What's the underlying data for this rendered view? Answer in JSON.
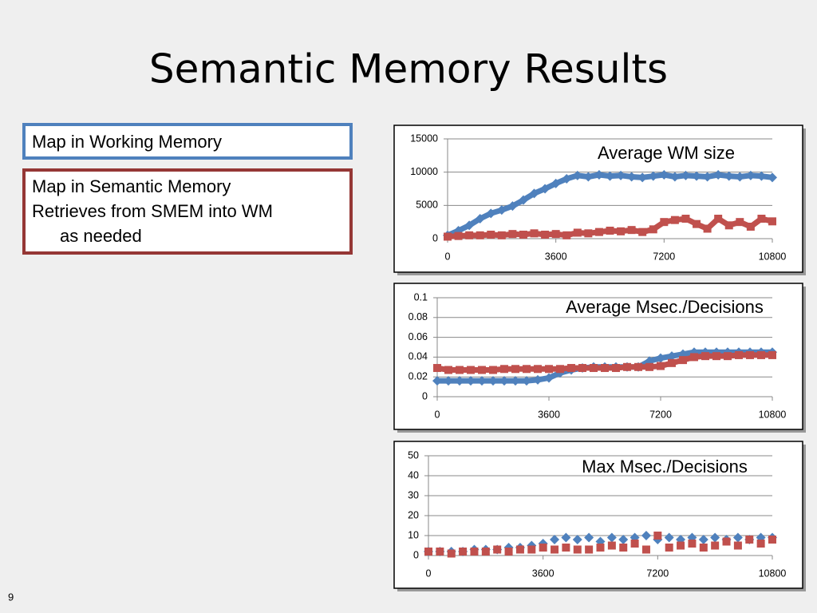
{
  "slide": {
    "title": "Semantic Memory Results",
    "boxes": [
      {
        "lines": [
          "Map in Working Memory"
        ]
      },
      {
        "lines": [
          "Map in Semantic Memory",
          "Retrieves from SMEM into WM",
          "as needed"
        ]
      }
    ],
    "page_number": "9"
  },
  "chart_data": [
    {
      "type": "line",
      "title": "Average WM size",
      "x": [
        0,
        360,
        720,
        1080,
        1440,
        1800,
        2160,
        2520,
        2880,
        3240,
        3600,
        3960,
        4320,
        4680,
        5040,
        5400,
        5760,
        6120,
        6480,
        6840,
        7200,
        7560,
        7920,
        8280,
        8640,
        9000,
        9360,
        9720,
        10080,
        10440,
        10800
      ],
      "series": [
        {
          "color": "#4f81bd",
          "marker": "diamond",
          "values": [
            500,
            1200,
            2000,
            3000,
            3800,
            4300,
            4900,
            5800,
            6800,
            7500,
            8300,
            9000,
            9500,
            9300,
            9600,
            9400,
            9500,
            9300,
            9200,
            9400,
            9600,
            9300,
            9500,
            9400,
            9300,
            9600,
            9400,
            9300,
            9500,
            9400,
            9200
          ]
        },
        {
          "color": "#c0504d",
          "marker": "square",
          "values": [
            300,
            400,
            500,
            500,
            600,
            500,
            700,
            600,
            800,
            600,
            700,
            500,
            900,
            800,
            1000,
            1200,
            1100,
            1300,
            1000,
            1400,
            2500,
            2800,
            3000,
            2200,
            1500,
            3000,
            2000,
            2500,
            1800,
            3000,
            2600
          ]
        }
      ],
      "xlim": [
        0,
        10800
      ],
      "xticks": [
        0,
        3600,
        7200,
        10800
      ],
      "ylim": [
        0,
        15000
      ],
      "yticks": [
        0,
        5000,
        10000,
        15000
      ],
      "grid": true
    },
    {
      "type": "line",
      "title": "Average Msec./Decisions",
      "x": [
        0,
        360,
        720,
        1080,
        1440,
        1800,
        2160,
        2520,
        2880,
        3240,
        3600,
        3960,
        4320,
        4680,
        5040,
        5400,
        5760,
        6120,
        6480,
        6840,
        7200,
        7560,
        7920,
        8280,
        8640,
        9000,
        9360,
        9720,
        10080,
        10440,
        10800
      ],
      "series": [
        {
          "color": "#4f81bd",
          "marker": "diamond",
          "values": [
            0.016,
            0.016,
            0.016,
            0.016,
            0.016,
            0.016,
            0.016,
            0.016,
            0.016,
            0.017,
            0.019,
            0.024,
            0.027,
            0.029,
            0.03,
            0.03,
            0.03,
            0.03,
            0.03,
            0.036,
            0.039,
            0.041,
            0.043,
            0.045,
            0.045,
            0.045,
            0.045,
            0.045,
            0.045,
            0.045,
            0.045
          ]
        },
        {
          "color": "#c0504d",
          "marker": "square",
          "values": [
            0.029,
            0.027,
            0.027,
            0.027,
            0.027,
            0.027,
            0.028,
            0.028,
            0.028,
            0.028,
            0.028,
            0.028,
            0.029,
            0.029,
            0.029,
            0.029,
            0.029,
            0.03,
            0.03,
            0.03,
            0.031,
            0.034,
            0.037,
            0.04,
            0.041,
            0.041,
            0.041,
            0.042,
            0.042,
            0.042,
            0.042
          ]
        }
      ],
      "xlim": [
        0,
        10800
      ],
      "xticks": [
        0,
        3600,
        7200,
        10800
      ],
      "ylim": [
        0,
        0.1
      ],
      "yticks": [
        0,
        0.02,
        0.04,
        0.06,
        0.08,
        0.1
      ],
      "grid": true
    },
    {
      "type": "scatter",
      "title": "Max Msec./Decisions",
      "x": [
        0,
        360,
        720,
        1080,
        1440,
        1800,
        2160,
        2520,
        2880,
        3240,
        3600,
        3960,
        4320,
        4680,
        5040,
        5400,
        5760,
        6120,
        6480,
        6840,
        7200,
        7560,
        7920,
        8280,
        8640,
        9000,
        9360,
        9720,
        10080,
        10440,
        10800
      ],
      "series": [
        {
          "color": "#4f81bd",
          "marker": "diamond",
          "values": [
            2,
            2,
            2,
            2,
            3,
            3,
            3,
            4,
            4,
            5,
            6,
            8,
            9,
            8,
            9,
            7,
            9,
            8,
            9,
            10,
            8,
            9,
            8,
            9,
            8,
            9,
            8,
            9,
            8,
            9,
            9
          ]
        },
        {
          "color": "#c0504d",
          "marker": "square",
          "values": [
            2,
            2,
            1,
            2,
            2,
            2,
            3,
            2,
            3,
            3,
            4,
            3,
            4,
            3,
            3,
            4,
            5,
            4,
            6,
            3,
            10,
            4,
            5,
            6,
            4,
            5,
            7,
            5,
            8,
            6,
            8
          ]
        }
      ],
      "xlim": [
        0,
        10800
      ],
      "xticks": [
        0,
        3600,
        7200,
        10800
      ],
      "ylim": [
        0,
        50
      ],
      "yticks": [
        0,
        10,
        20,
        30,
        40,
        50
      ],
      "grid": true
    }
  ]
}
